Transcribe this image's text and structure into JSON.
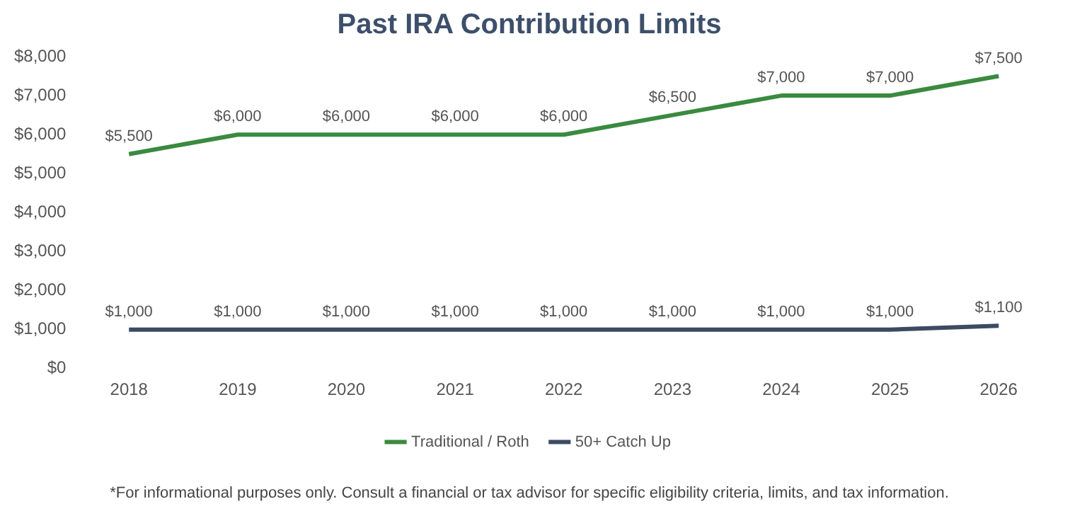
{
  "chart_data": {
    "type": "line",
    "title": "Past IRA Contribution Limits",
    "categories": [
      "2018",
      "2019",
      "2020",
      "2021",
      "2022",
      "2023",
      "2024",
      "2025",
      "2026"
    ],
    "series": [
      {
        "name": "Traditional / Roth",
        "color": "#3a8a3f",
        "values": [
          5500,
          6000,
          6000,
          6000,
          6000,
          6500,
          7000,
          7000,
          7500
        ],
        "value_labels": [
          "$5,500",
          "$6,000",
          "$6,000",
          "$6,000",
          "$6,000",
          "$6,500",
          "$7,000",
          "$7,000",
          "$7,500"
        ]
      },
      {
        "name": "50+ Catch Up",
        "color": "#3d4a61",
        "values": [
          1000,
          1000,
          1000,
          1000,
          1000,
          1000,
          1000,
          1000,
          1100
        ],
        "value_labels": [
          "$1,000",
          "$1,000",
          "$1,000",
          "$1,000",
          "$1,000",
          "$1,000",
          "$1,000",
          "$1,000",
          "$1,100"
        ]
      }
    ],
    "ylim": [
      0,
      8000
    ],
    "yticks": [
      {
        "value": 0,
        "label": "$0"
      },
      {
        "value": 1000,
        "label": "$1,000"
      },
      {
        "value": 2000,
        "label": "$2,000"
      },
      {
        "value": 3000,
        "label": "$3,000"
      },
      {
        "value": 4000,
        "label": "$4,000"
      },
      {
        "value": 5000,
        "label": "$5,000"
      },
      {
        "value": 6000,
        "label": "$6,000"
      },
      {
        "value": 7000,
        "label": "$7,000"
      },
      {
        "value": 8000,
        "label": "$8,000"
      }
    ],
    "grid": false,
    "legend": "bottom",
    "marker": "none",
    "line_style": "solid",
    "annotations": [
      "*For informational purposes only. Consult a financial or tax advisor for specific eligibility criteria, limits, and tax information."
    ]
  }
}
